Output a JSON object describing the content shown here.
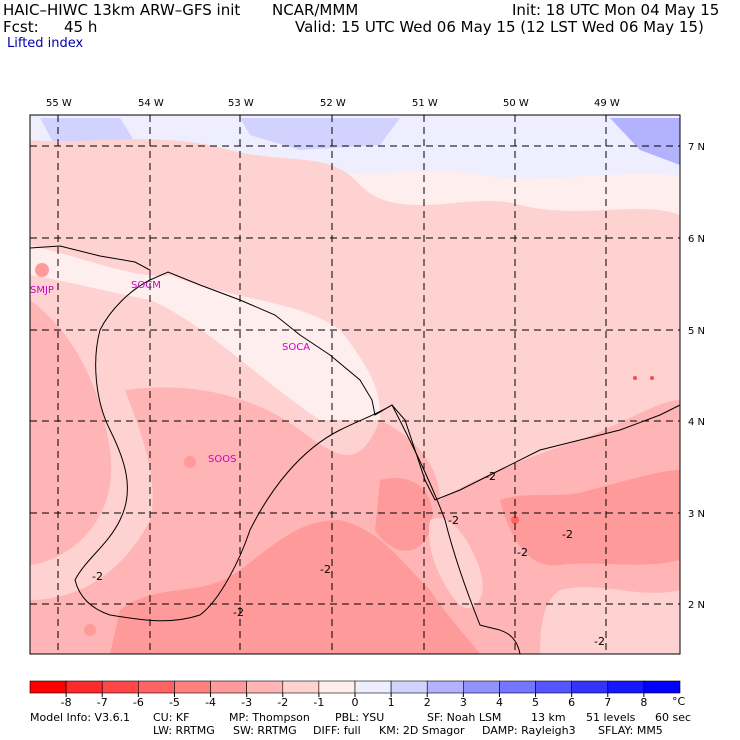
{
  "header": {
    "model": "HAIC–HIWC 13km ARW–GFS init",
    "org": "NCAR/MMM",
    "init": "Init: 18 UTC Mon 04 May 15",
    "fcst_label": "Fcst:",
    "fcst_value": "45 h",
    "valid": "Valid: 15 UTC Wed 06 May 15 (12 LST Wed 06 May 15)",
    "field": "Lifted index"
  },
  "map": {
    "lon_labels": [
      "55 W",
      "54 W",
      "53 W",
      "52 W",
      "51 W",
      "50 W",
      "49 W"
    ],
    "lat_labels": [
      "7 N",
      "6 N",
      "5 N",
      "4 N",
      "3 N",
      "2 N"
    ],
    "stations": [
      "SMJP",
      "SOCM",
      "SOCA",
      "SOOS"
    ],
    "contour_labels": [
      "-2",
      "-2",
      "-2",
      "-2",
      "-2",
      "-2",
      "-2",
      "-2"
    ]
  },
  "colorbar": {
    "ticks": [
      "-8",
      "-7",
      "-6",
      "-5",
      "-4",
      "-3",
      "-2",
      "-1",
      "0",
      "1",
      "2",
      "3",
      "4",
      "5",
      "6",
      "7",
      "8"
    ],
    "unit": "°C",
    "colors": [
      "#ff0000",
      "#ff2a2a",
      "#ff4747",
      "#ff6363",
      "#ff7f7f",
      "#ff9a9a",
      "#ffb5b5",
      "#ffd2d2",
      "#ffeeee",
      "#eeeeff",
      "#d2d2ff",
      "#b2b2ff",
      "#9393ff",
      "#7575ff",
      "#5555ff",
      "#3434ff",
      "#1616ff",
      "#0000ff"
    ]
  },
  "footer": {
    "line1": [
      "Model Info: V3.6.1",
      "CU: KF",
      "MP: Thompson",
      "PBL: YSU",
      "SF: Noah LSM",
      "13 km",
      "51 levels",
      "60 sec"
    ],
    "line2": [
      "LW: RRTMG",
      "SW: RRTMG",
      "DIFF: full",
      "KM: 2D Smagor",
      "DAMP: Rayleigh3",
      "SFLAY: MM5"
    ]
  }
}
